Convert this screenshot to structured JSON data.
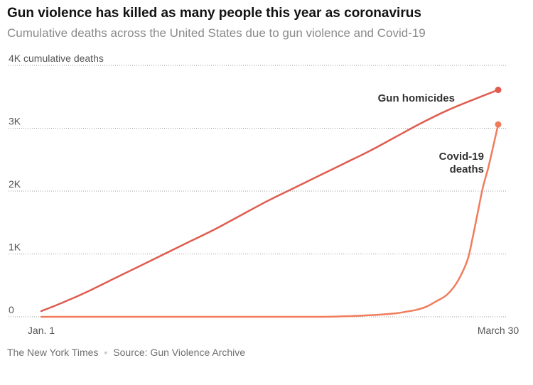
{
  "chart_data": {
    "type": "line",
    "title": "Gun violence has killed as many people this year as coronavirus",
    "subtitle": "Cumulative deaths across the United States due to gun violence and Covid-19",
    "ylabel": "cumulative deaths",
    "ylim": [
      0,
      4000
    ],
    "y_ticks": [
      {
        "value": 4000,
        "label": "4K cumulative deaths"
      },
      {
        "value": 3000,
        "label": "3K"
      },
      {
        "value": 2000,
        "label": "2K"
      },
      {
        "value": 1000,
        "label": "1K"
      },
      {
        "value": 0,
        "label": "0"
      }
    ],
    "x_ticks": [
      {
        "value": 1,
        "label": "Jan. 1"
      },
      {
        "value": 90,
        "label": "March 30"
      }
    ],
    "xlim": [
      1,
      90
    ],
    "grid": "horizontal-dotted",
    "series": [
      {
        "name": "Gun homicides",
        "color": "#e05c50",
        "label_lines": [
          "Gun homicides"
        ],
        "x": [
          1,
          5,
          10,
          15,
          20,
          25,
          30,
          35,
          40,
          45,
          50,
          55,
          60,
          65,
          70,
          75,
          80,
          85,
          90
        ],
        "values": [
          90,
          220,
          400,
          600,
          800,
          1000,
          1200,
          1400,
          1620,
          1840,
          2040,
          2240,
          2440,
          2640,
          2860,
          3080,
          3280,
          3450,
          3610
        ]
      },
      {
        "name": "Covid-19 deaths",
        "color": "#f07c5c",
        "label_lines": [
          "Covid-19",
          "deaths"
        ],
        "x": [
          1,
          20,
          40,
          55,
          60,
          65,
          70,
          72,
          74,
          76,
          78,
          80,
          82,
          84,
          85,
          86,
          87,
          88,
          89,
          90
        ],
        "values": [
          0,
          0,
          0,
          0,
          8,
          25,
          55,
          80,
          110,
          160,
          250,
          350,
          550,
          900,
          1250,
          1650,
          2050,
          2350,
          2700,
          3060
        ]
      }
    ]
  },
  "footer": {
    "publisher": "The New York Times",
    "separator": "•",
    "source": "Source: Gun Violence Archive"
  }
}
